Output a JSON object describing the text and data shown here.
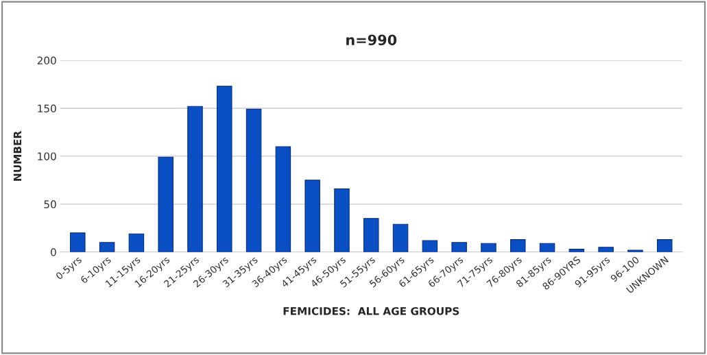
{
  "chart_data": {
    "type": "bar",
    "title": "n=990",
    "xlabel": "FEMICIDES:  ALL AGE GROUPS",
    "ylabel": "NUMBER",
    "categories": [
      "0-5yrs",
      "6-10yrs",
      "11-15yrs",
      "16-20yrs",
      "21-25yrs",
      "26-30yrs",
      "31-35yrs",
      "36-40yrs",
      "41-45yrs",
      "46-50yrs",
      "51-55yrs",
      "56-60yrs",
      "61-65yrs",
      "66-70yrs",
      "71-75yrs",
      "76-80yrs",
      "81-85yrs",
      "86-90YRS",
      "91-95yrs",
      "96-100",
      "UNKNOWN"
    ],
    "values": [
      20,
      10,
      19,
      99,
      152,
      173,
      149,
      110,
      75,
      66,
      35,
      29,
      12,
      10,
      9,
      13,
      9,
      3,
      5,
      2,
      13
    ],
    "color": "#0b4fc4",
    "ylim": [
      0,
      200
    ],
    "yticks": [
      0,
      50,
      100,
      150,
      200
    ],
    "grid": "y"
  }
}
